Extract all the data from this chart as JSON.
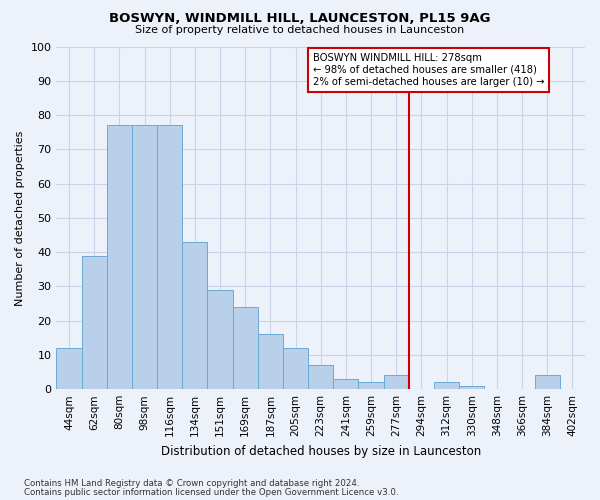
{
  "title": "BOSWYN, WINDMILL HILL, LAUNCESTON, PL15 9AG",
  "subtitle": "Size of property relative to detached houses in Launceston",
  "xlabel": "Distribution of detached houses by size in Launceston",
  "ylabel": "Number of detached properties",
  "bar_labels": [
    "44sqm",
    "62sqm",
    "80sqm",
    "98sqm",
    "116sqm",
    "134sqm",
    "151sqm",
    "169sqm",
    "187sqm",
    "205sqm",
    "223sqm",
    "241sqm",
    "259sqm",
    "277sqm",
    "294sqm",
    "312sqm",
    "330sqm",
    "348sqm",
    "366sqm",
    "384sqm",
    "402sqm"
  ],
  "bar_values": [
    12,
    39,
    77,
    77,
    77,
    43,
    29,
    24,
    16,
    12,
    7,
    3,
    2,
    4,
    0,
    2,
    1,
    0,
    0,
    4,
    0
  ],
  "bar_color": "#b8d0ea",
  "bar_edge_color": "#6aaad4",
  "grid_color": "#c8d4e8",
  "background_color": "#edf2fa",
  "vline_x_index": 13.5,
  "vline_color": "#cc0000",
  "legend_title": "BOSWYN WINDMILL HILL: 278sqm",
  "legend_line1": "← 98% of detached houses are smaller (418)",
  "legend_line2": "2% of semi-detached houses are larger (10) →",
  "ylim": [
    0,
    100
  ],
  "yticks": [
    0,
    10,
    20,
    30,
    40,
    50,
    60,
    70,
    80,
    90,
    100
  ],
  "footnote1": "Contains HM Land Registry data © Crown copyright and database right 2024.",
  "footnote2": "Contains public sector information licensed under the Open Government Licence v3.0."
}
